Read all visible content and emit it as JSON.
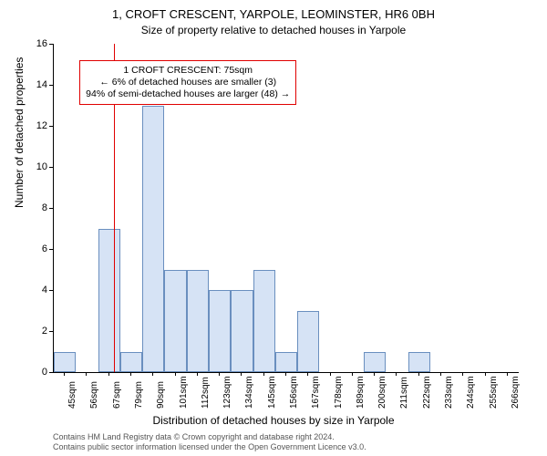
{
  "chart": {
    "type": "histogram",
    "title_main": "1, CROFT CRESCENT, YARPOLE, LEOMINSTER, HR6 0BH",
    "title_sub": "Size of property relative to detached houses in Yarpole",
    "x_axis_label": "Distribution of detached houses by size in Yarpole",
    "y_axis_label": "Number of detached properties",
    "background_color": "#ffffff",
    "bar_fill": "#d6e3f5",
    "bar_border": "#6a8fbf",
    "axis_color": "#000000",
    "annotation_border": "#e00000",
    "ylim": [
      0,
      16
    ],
    "ytick_step": 2,
    "xticks": [
      "45sqm",
      "56sqm",
      "67sqm",
      "79sqm",
      "90sqm",
      "101sqm",
      "112sqm",
      "123sqm",
      "134sqm",
      "145sqm",
      "156sqm",
      "167sqm",
      "178sqm",
      "189sqm",
      "200sqm",
      "211sqm",
      "222sqm",
      "233sqm",
      "244sqm",
      "255sqm",
      "266sqm"
    ],
    "bars": [
      {
        "x_index": 0,
        "value": 1
      },
      {
        "x_index": 2,
        "value": 7
      },
      {
        "x_index": 3,
        "value": 1
      },
      {
        "x_index": 4,
        "value": 13
      },
      {
        "x_index": 5,
        "value": 5
      },
      {
        "x_index": 6,
        "value": 5
      },
      {
        "x_index": 7,
        "value": 4
      },
      {
        "x_index": 8,
        "value": 4
      },
      {
        "x_index": 9,
        "value": 5
      },
      {
        "x_index": 10,
        "value": 1
      },
      {
        "x_index": 11,
        "value": 3
      },
      {
        "x_index": 14,
        "value": 1
      },
      {
        "x_index": 16,
        "value": 1
      }
    ],
    "marker_x_index": 2.75,
    "annotation_box": {
      "left_tick": 1.2,
      "top_value": 15.2,
      "lines": [
        "1 CROFT CRESCENT: 75sqm",
        "← 6% of detached houses are smaller (3)",
        "94% of semi-detached houses are larger (48) →"
      ]
    },
    "title_fontsize": 13,
    "subtitle_fontsize": 12,
    "axis_label_fontsize": 12,
    "tick_fontsize": 11,
    "xtick_fontsize": 10,
    "annotation_fontsize": 10.5,
    "credits_fontsize": 9
  },
  "credits": {
    "line1": "Contains HM Land Registry data © Crown copyright and database right 2024.",
    "line2": "Contains public sector information licensed under the Open Government Licence v3.0."
  }
}
